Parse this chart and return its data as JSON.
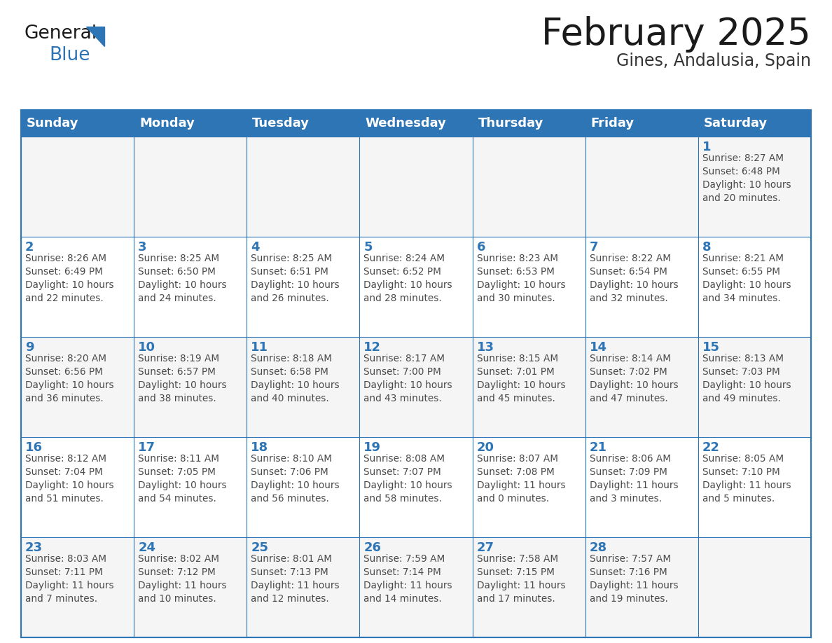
{
  "title": "February 2025",
  "subtitle": "Gines, Andalusia, Spain",
  "days_of_week": [
    "Sunday",
    "Monday",
    "Tuesday",
    "Wednesday",
    "Thursday",
    "Friday",
    "Saturday"
  ],
  "header_bg_color": "#2E75B6",
  "header_text_color": "#FFFFFF",
  "border_color": "#2E75B6",
  "day_number_color": "#2E75B6",
  "info_text_color": "#4a4a4a",
  "alt_row_color": "#f2f2f2",
  "calendar_data": [
    [
      null,
      null,
      null,
      null,
      null,
      null,
      {
        "day": 1,
        "sunrise": "8:27 AM",
        "sunset": "6:48 PM",
        "daylight": "10 hours\nand 20 minutes."
      }
    ],
    [
      {
        "day": 2,
        "sunrise": "8:26 AM",
        "sunset": "6:49 PM",
        "daylight": "10 hours\nand 22 minutes."
      },
      {
        "day": 3,
        "sunrise": "8:25 AM",
        "sunset": "6:50 PM",
        "daylight": "10 hours\nand 24 minutes."
      },
      {
        "day": 4,
        "sunrise": "8:25 AM",
        "sunset": "6:51 PM",
        "daylight": "10 hours\nand 26 minutes."
      },
      {
        "day": 5,
        "sunrise": "8:24 AM",
        "sunset": "6:52 PM",
        "daylight": "10 hours\nand 28 minutes."
      },
      {
        "day": 6,
        "sunrise": "8:23 AM",
        "sunset": "6:53 PM",
        "daylight": "10 hours\nand 30 minutes."
      },
      {
        "day": 7,
        "sunrise": "8:22 AM",
        "sunset": "6:54 PM",
        "daylight": "10 hours\nand 32 minutes."
      },
      {
        "day": 8,
        "sunrise": "8:21 AM",
        "sunset": "6:55 PM",
        "daylight": "10 hours\nand 34 minutes."
      }
    ],
    [
      {
        "day": 9,
        "sunrise": "8:20 AM",
        "sunset": "6:56 PM",
        "daylight": "10 hours\nand 36 minutes."
      },
      {
        "day": 10,
        "sunrise": "8:19 AM",
        "sunset": "6:57 PM",
        "daylight": "10 hours\nand 38 minutes."
      },
      {
        "day": 11,
        "sunrise": "8:18 AM",
        "sunset": "6:58 PM",
        "daylight": "10 hours\nand 40 minutes."
      },
      {
        "day": 12,
        "sunrise": "8:17 AM",
        "sunset": "7:00 PM",
        "daylight": "10 hours\nand 43 minutes."
      },
      {
        "day": 13,
        "sunrise": "8:15 AM",
        "sunset": "7:01 PM",
        "daylight": "10 hours\nand 45 minutes."
      },
      {
        "day": 14,
        "sunrise": "8:14 AM",
        "sunset": "7:02 PM",
        "daylight": "10 hours\nand 47 minutes."
      },
      {
        "day": 15,
        "sunrise": "8:13 AM",
        "sunset": "7:03 PM",
        "daylight": "10 hours\nand 49 minutes."
      }
    ],
    [
      {
        "day": 16,
        "sunrise": "8:12 AM",
        "sunset": "7:04 PM",
        "daylight": "10 hours\nand 51 minutes."
      },
      {
        "day": 17,
        "sunrise": "8:11 AM",
        "sunset": "7:05 PM",
        "daylight": "10 hours\nand 54 minutes."
      },
      {
        "day": 18,
        "sunrise": "8:10 AM",
        "sunset": "7:06 PM",
        "daylight": "10 hours\nand 56 minutes."
      },
      {
        "day": 19,
        "sunrise": "8:08 AM",
        "sunset": "7:07 PM",
        "daylight": "10 hours\nand 58 minutes."
      },
      {
        "day": 20,
        "sunrise": "8:07 AM",
        "sunset": "7:08 PM",
        "daylight": "11 hours\nand 0 minutes."
      },
      {
        "day": 21,
        "sunrise": "8:06 AM",
        "sunset": "7:09 PM",
        "daylight": "11 hours\nand 3 minutes."
      },
      {
        "day": 22,
        "sunrise": "8:05 AM",
        "sunset": "7:10 PM",
        "daylight": "11 hours\nand 5 minutes."
      }
    ],
    [
      {
        "day": 23,
        "sunrise": "8:03 AM",
        "sunset": "7:11 PM",
        "daylight": "11 hours\nand 7 minutes."
      },
      {
        "day": 24,
        "sunrise": "8:02 AM",
        "sunset": "7:12 PM",
        "daylight": "11 hours\nand 10 minutes."
      },
      {
        "day": 25,
        "sunrise": "8:01 AM",
        "sunset": "7:13 PM",
        "daylight": "11 hours\nand 12 minutes."
      },
      {
        "day": 26,
        "sunrise": "7:59 AM",
        "sunset": "7:14 PM",
        "daylight": "11 hours\nand 14 minutes."
      },
      {
        "day": 27,
        "sunrise": "7:58 AM",
        "sunset": "7:15 PM",
        "daylight": "11 hours\nand 17 minutes."
      },
      {
        "day": 28,
        "sunrise": "7:57 AM",
        "sunset": "7:16 PM",
        "daylight": "11 hours\nand 19 minutes."
      },
      null
    ]
  ]
}
